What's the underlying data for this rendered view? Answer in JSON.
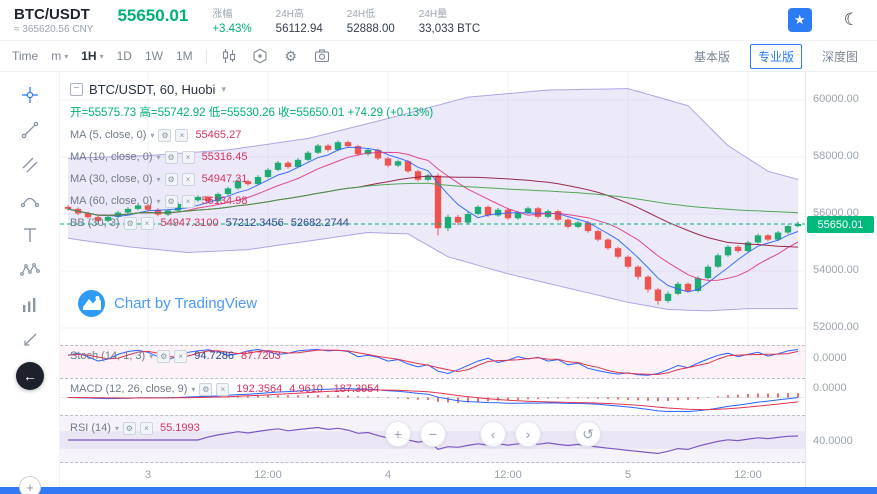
{
  "header": {
    "pair": "BTC/USDT",
    "cny": "≈ 365620.56 CNY",
    "price": "55650.01",
    "stats": [
      {
        "label": "涨幅",
        "value": "+3.43%"
      },
      {
        "label": "24H高",
        "value": "56112.94"
      },
      {
        "label": "24H低",
        "value": "52888.00"
      },
      {
        "label": "24H量",
        "value": "33,033 BTC"
      }
    ]
  },
  "toolbar": {
    "time_label": "Time",
    "minute": "m",
    "hour": "1H",
    "periods": [
      "1D",
      "1W",
      "1M"
    ],
    "basic": "基本版",
    "pro": "专业版",
    "depth": "深度图"
  },
  "legend": {
    "title": "BTC/USDT, 60, Huobi",
    "ohlc": "开=55575.73  高=55742.92  低=55530.26  收=55650.01  +74.29 (+0.13%)",
    "ma5": {
      "label": "MA (5, close, 0)",
      "value": "55465.27"
    },
    "ma10": {
      "label": "MA (10, close, 0)",
      "value": "55316.45"
    },
    "ma30": {
      "label": "MA (30, close, 0)",
      "value": "54947.31"
    },
    "ma60": {
      "label": "MA (60, close, 0)",
      "value": "56134.98"
    },
    "bb": {
      "label": "BB (30, 3)",
      "v1": "54947.3100",
      "v2": "57212.3456",
      "v3": "52682.2744"
    },
    "stoch": {
      "label": "Stoch (14, 1, 3)",
      "k": "94.7286",
      "d": "87.7203"
    },
    "macd": {
      "label": "MACD (12, 26, close, 9)",
      "v1": "192.3564",
      "v2": "4.9610",
      "v3": "-187.3954"
    },
    "rsi": {
      "label": "RSI (14)",
      "value": "55.1993"
    }
  },
  "axis": {
    "price_labels": [
      "60000.00",
      "58000.00",
      "56000.00",
      "54000.00",
      "52000.00"
    ],
    "stoch_zero": "0.0000",
    "macd_zero": "0.0000",
    "rsi_forty": "40.0000",
    "last_price": "55650.01"
  },
  "watermark": "Chart by TradingView",
  "icons": {
    "star": "★",
    "moon": "☾",
    "caret": "▾",
    "gear": "⚙",
    "close": "×",
    "collapse": "−",
    "plus": "+",
    "minus": "−",
    "chev_left": "‹",
    "chev_right": "›",
    "reset": "↺",
    "back": "←"
  },
  "chart_data": {
    "type": "candlestick",
    "symbol": "BTC/USDT",
    "interval": "60",
    "exchange": "Huobi",
    "price_range": [
      52000,
      60000
    ],
    "price_gridlines": [
      60000,
      58000,
      56000,
      54000,
      52000
    ],
    "last_price": 55650.01,
    "current_candle": {
      "open": 55575.73,
      "high": 55742.92,
      "low": 55530.26,
      "close": 55650.01,
      "change": "+74.29",
      "change_pct": "+0.13%"
    },
    "time_ticks": [
      {
        "i": 8,
        "label": "3"
      },
      {
        "i": 20,
        "label": "12:00"
      },
      {
        "i": 32,
        "label": "4"
      },
      {
        "i": 44,
        "label": "12:00"
      },
      {
        "i": 56,
        "label": "5"
      },
      {
        "i": 68,
        "label": "12:00"
      }
    ],
    "candles": [
      [
        56250,
        56320,
        56120,
        56180
      ],
      [
        56180,
        56230,
        55960,
        56020
      ],
      [
        56020,
        56080,
        55830,
        55890
      ],
      [
        55890,
        55950,
        55700,
        55760
      ],
      [
        55760,
        55960,
        55710,
        55900
      ],
      [
        55900,
        56110,
        55850,
        56050
      ],
      [
        56050,
        56240,
        56000,
        56180
      ],
      [
        56180,
        56360,
        56130,
        56300
      ],
      [
        56300,
        56350,
        56090,
        56150
      ],
      [
        56150,
        56200,
        55920,
        55980
      ],
      [
        55980,
        56180,
        55930,
        56120
      ],
      [
        56120,
        56410,
        56070,
        56350
      ],
      [
        56350,
        56540,
        56300,
        56480
      ],
      [
        56480,
        56660,
        56430,
        56600
      ],
      [
        56600,
        56650,
        56390,
        56450
      ],
      [
        56450,
        56760,
        56400,
        56700
      ],
      [
        56700,
        56960,
        56650,
        56900
      ],
      [
        56900,
        57210,
        56850,
        57150
      ],
      [
        57150,
        57200,
        56990,
        57050
      ],
      [
        57050,
        57360,
        57000,
        57300
      ],
      [
        57300,
        57610,
        57250,
        57550
      ],
      [
        57550,
        57860,
        57500,
        57800
      ],
      [
        57800,
        57850,
        57590,
        57650
      ],
      [
        57650,
        57960,
        57600,
        57900
      ],
      [
        57900,
        58210,
        57850,
        58150
      ],
      [
        58150,
        58460,
        58100,
        58400
      ],
      [
        58400,
        58450,
        58190,
        58250
      ],
      [
        58250,
        58580,
        58200,
        58520
      ],
      [
        58520,
        58570,
        58320,
        58380
      ],
      [
        58380,
        58430,
        58040,
        58100
      ],
      [
        58100,
        58310,
        58050,
        58250
      ],
      [
        58250,
        58300,
        57890,
        57950
      ],
      [
        57950,
        58000,
        57640,
        57700
      ],
      [
        57700,
        57910,
        57650,
        57850
      ],
      [
        57850,
        57900,
        57440,
        57500
      ],
      [
        57500,
        57550,
        57140,
        57200
      ],
      [
        57200,
        57410,
        57150,
        57350
      ],
      [
        57350,
        57420,
        55250,
        55500
      ],
      [
        55500,
        55980,
        55400,
        55900
      ],
      [
        55900,
        55960,
        55600,
        55700
      ],
      [
        55700,
        56080,
        55650,
        56000
      ],
      [
        56000,
        56310,
        55950,
        56250
      ],
      [
        56250,
        56300,
        55890,
        55950
      ],
      [
        55950,
        56210,
        55900,
        56150
      ],
      [
        56150,
        56200,
        55790,
        55850
      ],
      [
        55850,
        56110,
        55800,
        56050
      ],
      [
        56050,
        56260,
        56000,
        56200
      ],
      [
        56200,
        56250,
        55840,
        55900
      ],
      [
        55900,
        56160,
        55850,
        56100
      ],
      [
        56100,
        56150,
        55740,
        55800
      ],
      [
        55800,
        55850,
        55490,
        55550
      ],
      [
        55550,
        55760,
        55500,
        55700
      ],
      [
        55700,
        55750,
        55340,
        55400
      ],
      [
        55400,
        55450,
        55040,
        55100
      ],
      [
        55100,
        55150,
        54740,
        54800
      ],
      [
        54800,
        54850,
        54440,
        54500
      ],
      [
        54500,
        54550,
        54090,
        54150
      ],
      [
        54150,
        54200,
        53700,
        53800
      ],
      [
        53800,
        53850,
        53250,
        53350
      ],
      [
        53350,
        53400,
        52820,
        52950
      ],
      [
        52950,
        53280,
        52880,
        53200
      ],
      [
        53200,
        53620,
        53150,
        53550
      ],
      [
        53550,
        53600,
        53240,
        53300
      ],
      [
        53300,
        53820,
        53250,
        53750
      ],
      [
        53750,
        54220,
        53700,
        54150
      ],
      [
        54150,
        54620,
        54100,
        54550
      ],
      [
        54550,
        54910,
        54500,
        54850
      ],
      [
        54850,
        54900,
        54640,
        54700
      ],
      [
        54700,
        55060,
        54650,
        55000
      ],
      [
        55000,
        55310,
        54950,
        55250
      ],
      [
        55250,
        55300,
        55040,
        55100
      ],
      [
        55100,
        55410,
        55050,
        55350
      ],
      [
        55350,
        55620,
        55300,
        55575.73
      ],
      [
        55575.73,
        55742.92,
        55530.26,
        55650.01
      ]
    ],
    "ma_periods": [
      5,
      10,
      30,
      60
    ],
    "bb_upper_points": [
      [
        0,
        57950
      ],
      [
        8,
        58050
      ],
      [
        16,
        58250
      ],
      [
        24,
        58650
      ],
      [
        32,
        59350
      ],
      [
        40,
        60100
      ],
      [
        48,
        60350
      ],
      [
        56,
        60400
      ],
      [
        62,
        59800
      ],
      [
        66,
        58400
      ],
      [
        70,
        57500
      ],
      [
        73,
        57212
      ]
    ],
    "bb_lower_points": [
      [
        0,
        55150
      ],
      [
        6,
        54850
      ],
      [
        12,
        54650
      ],
      [
        18,
        54750
      ],
      [
        24,
        55050
      ],
      [
        30,
        55350
      ],
      [
        34,
        55300
      ],
      [
        38,
        54500
      ],
      [
        44,
        53900
      ],
      [
        50,
        53400
      ],
      [
        56,
        52900
      ],
      [
        60,
        52650
      ],
      [
        64,
        52600
      ],
      [
        68,
        52680
      ],
      [
        73,
        52682
      ]
    ],
    "stoch_k": [
      75,
      82,
      70,
      55,
      62,
      78,
      88,
      92,
      85,
      70,
      60,
      72,
      85,
      90,
      94,
      88,
      75,
      80,
      90,
      95,
      88,
      78,
      82,
      90,
      93,
      95,
      90,
      92,
      88,
      70,
      75,
      68,
      55,
      60,
      45,
      35,
      42,
      20,
      12,
      25,
      40,
      55,
      65,
      50,
      58,
      70,
      62,
      68,
      55,
      60,
      42,
      48,
      30,
      22,
      15,
      10,
      14,
      8,
      6,
      12,
      25,
      40,
      32,
      48,
      62,
      75,
      82,
      70,
      78,
      85,
      72,
      80,
      90,
      94.7
    ],
    "macd_params": [
      12,
      26,
      9
    ],
    "rsi_period": 14
  }
}
